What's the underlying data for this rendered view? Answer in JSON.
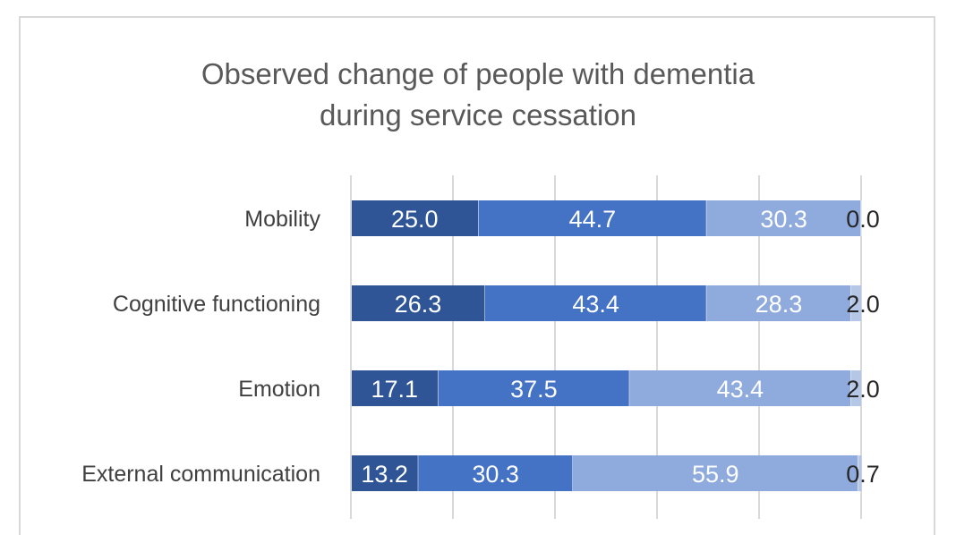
{
  "chart_data": {
    "type": "bar",
    "orientation": "horizontal",
    "stacked": true,
    "title_lines": [
      "Observed change of people with dementia",
      "during service cessation"
    ],
    "categories": [
      "Mobility",
      "Cognitive functioning",
      "Emotion",
      "External communication"
    ],
    "series": [
      {
        "values": [
          25.0,
          26.3,
          17.1,
          13.2
        ],
        "color": "#2f5597"
      },
      {
        "values": [
          44.7,
          43.4,
          37.5,
          30.3
        ],
        "color": "#4472c4"
      },
      {
        "values": [
          30.3,
          28.3,
          43.4,
          55.9
        ],
        "color": "#8faadc"
      },
      {
        "values": [
          0.0,
          2.0,
          2.0,
          0.7
        ],
        "color": "#b4c7e7"
      }
    ],
    "value_labels": [
      [
        "25.0",
        "44.7",
        "30.3",
        "0.0"
      ],
      [
        "26.3",
        "43.4",
        "28.3",
        "2.0"
      ],
      [
        "17.1",
        "37.5",
        "43.4",
        "2.0"
      ],
      [
        "13.2",
        "30.3",
        "55.9",
        "0.7"
      ]
    ],
    "xlim": [
      0,
      100
    ],
    "grid": true,
    "label_colors": [
      "#ffffff",
      "#ffffff",
      "#ffffff",
      "#262626"
    ]
  }
}
